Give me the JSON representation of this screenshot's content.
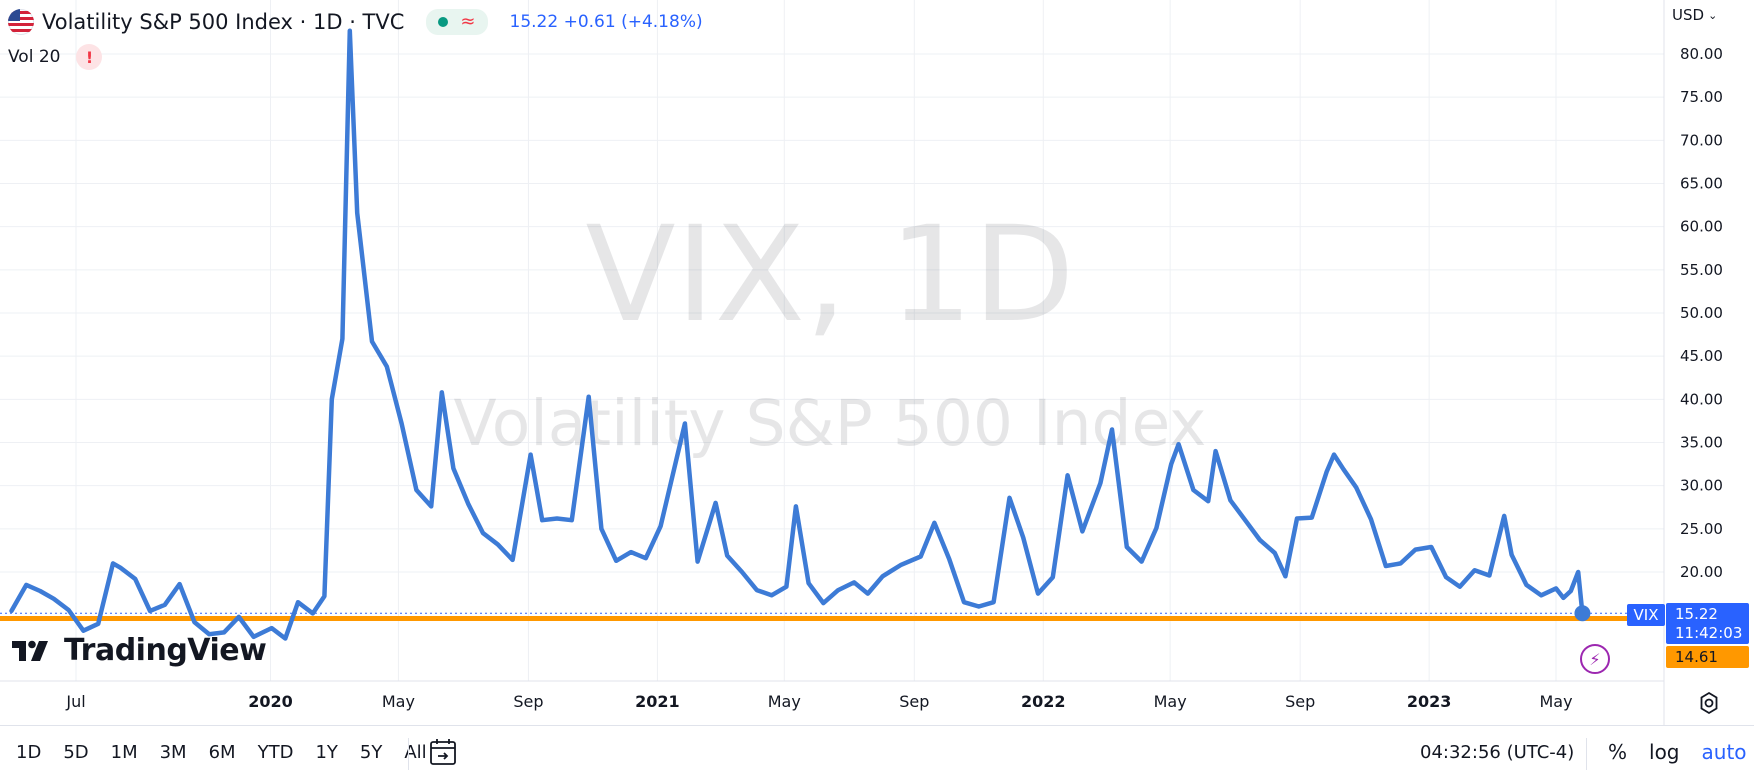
{
  "legend": {
    "title": "Volatility S&P 500 Index · 1D · TVC",
    "price_info": "15.22 +0.61 (+4.18%)",
    "status_symbol": "≈"
  },
  "volume": {
    "label": "Vol 20",
    "warning": "!"
  },
  "currency": "USD",
  "watermark": {
    "symbol": "VIX, 1D",
    "name": "Volatility S&P 500 Index"
  },
  "price_scale": {
    "vix_tag": "VIX",
    "last_price": "15.22",
    "countdown": "11:42:03",
    "line_value": "14.61"
  },
  "logo": {
    "text": "TradingView"
  },
  "bottom_toolbar": {
    "ranges": [
      "1D",
      "5D",
      "1M",
      "3M",
      "6M",
      "YTD",
      "1Y",
      "5Y",
      "All"
    ],
    "clock": "04:32:56 (UTC-4)",
    "percent": "%",
    "log": "log",
    "auto": "auto"
  },
  "colors": {
    "series": "#3d7bd6",
    "horizontal_line": "#ff9800",
    "accent": "#2962ff",
    "grid": "#eef0f4",
    "warning": "#f23645",
    "bolt": "#9c27b0"
  },
  "chart_data": {
    "type": "line",
    "title": "Volatility S&P 500 Index · 1D · TVC",
    "ylabel": "",
    "xlabel": "",
    "ylim": [
      9.0,
      84.0
    ],
    "y_ticks": [
      "80.00",
      "75.00",
      "70.00",
      "65.00",
      "60.00",
      "55.00",
      "50.00",
      "45.00",
      "40.00",
      "35.00",
      "30.00",
      "25.00",
      "20.00"
    ],
    "x_ticks": [
      "Jul",
      "2020",
      "May",
      "Sep",
      "2021",
      "May",
      "Sep",
      "2022",
      "May",
      "Sep",
      "2023",
      "May"
    ],
    "horizontal_line": 14.61,
    "series": [
      {
        "name": "VIX",
        "x": [
          "2019-05-01",
          "2019-05-15",
          "2019-05-28",
          "2019-06-10",
          "2019-06-24",
          "2019-07-08",
          "2019-07-22",
          "2019-08-05",
          "2019-08-12",
          "2019-08-26",
          "2019-09-09",
          "2019-09-23",
          "2019-10-07",
          "2019-10-21",
          "2019-11-04",
          "2019-11-18",
          "2019-12-02",
          "2019-12-16",
          "2020-01-02",
          "2020-01-15",
          "2020-01-27",
          "2020-02-10",
          "2020-02-21",
          "2020-02-28",
          "2020-03-09",
          "2020-03-16",
          "2020-03-23",
          "2020-04-06",
          "2020-04-20",
          "2020-05-04",
          "2020-05-18",
          "2020-06-01",
          "2020-06-11",
          "2020-06-22",
          "2020-07-06",
          "2020-07-20",
          "2020-08-03",
          "2020-08-17",
          "2020-09-03",
          "2020-09-14",
          "2020-09-28",
          "2020-10-12",
          "2020-10-28",
          "2020-11-09",
          "2020-11-23",
          "2020-12-07",
          "2020-12-21",
          "2021-01-04",
          "2021-01-27",
          "2021-02-08",
          "2021-02-25",
          "2021-03-08",
          "2021-03-22",
          "2021-04-05",
          "2021-04-19",
          "2021-05-03",
          "2021-05-12",
          "2021-05-24",
          "2021-06-07",
          "2021-06-21",
          "2021-07-06",
          "2021-07-19",
          "2021-08-02",
          "2021-08-19",
          "2021-09-07",
          "2021-09-20",
          "2021-10-04",
          "2021-10-18",
          "2021-11-01",
          "2021-11-15",
          "2021-11-30",
          "2021-12-13",
          "2021-12-27",
          "2022-01-10",
          "2022-01-24",
          "2022-02-07",
          "2022-02-24",
          "2022-03-07",
          "2022-03-21",
          "2022-04-04",
          "2022-04-18",
          "2022-05-02",
          "2022-05-09",
          "2022-05-23",
          "2022-06-06",
          "2022-06-13",
          "2022-06-27",
          "2022-07-11",
          "2022-07-25",
          "2022-08-08",
          "2022-08-18",
          "2022-08-29",
          "2022-09-12",
          "2022-09-26",
          "2022-10-03",
          "2022-10-12",
          "2022-10-24",
          "2022-11-07",
          "2022-11-21",
          "2022-12-05",
          "2022-12-19",
          "2023-01-03",
          "2023-01-17",
          "2023-01-30",
          "2023-02-13",
          "2023-02-27",
          "2023-03-13",
          "2023-03-20",
          "2023-04-03",
          "2023-04-17",
          "2023-05-01",
          "2023-05-08",
          "2023-05-15",
          "2023-05-22",
          "2023-05-26"
        ],
        "values": [
          15.5,
          18.5,
          17.8,
          16.9,
          15.6,
          13.2,
          14.0,
          21.0,
          20.5,
          19.2,
          15.5,
          16.2,
          18.6,
          14.2,
          12.8,
          13.0,
          14.8,
          12.5,
          13.5,
          12.3,
          16.5,
          15.2,
          17.2,
          40.0,
          47.0,
          82.7,
          61.6,
          46.7,
          43.8,
          37.2,
          29.5,
          27.6,
          40.8,
          32.0,
          27.9,
          24.5,
          23.2,
          21.4,
          33.6,
          26.0,
          26.2,
          26.0,
          40.3,
          25.0,
          21.3,
          22.3,
          21.6,
          25.3,
          37.2,
          21.2,
          28.0,
          21.9,
          20.0,
          17.9,
          17.3,
          18.3,
          27.6,
          18.7,
          16.4,
          17.9,
          18.8,
          17.5,
          19.5,
          20.8,
          21.8,
          25.7,
          21.5,
          16.5,
          16.0,
          16.5,
          28.6,
          24.0,
          17.5,
          19.4,
          31.2,
          24.7,
          30.3,
          36.5,
          22.9,
          21.2,
          25.1,
          32.5,
          34.8,
          29.5,
          28.2,
          34.0,
          28.3,
          26.0,
          23.7,
          22.2,
          19.5,
          26.2,
          26.3,
          31.6,
          33.6,
          31.9,
          29.8,
          26.1,
          20.7,
          21.0,
          22.6,
          22.9,
          19.4,
          18.3,
          20.2,
          19.6,
          26.5,
          22.0,
          18.5,
          17.3,
          18.1,
          17.0,
          17.8,
          20.0,
          15.22
        ]
      }
    ]
  }
}
